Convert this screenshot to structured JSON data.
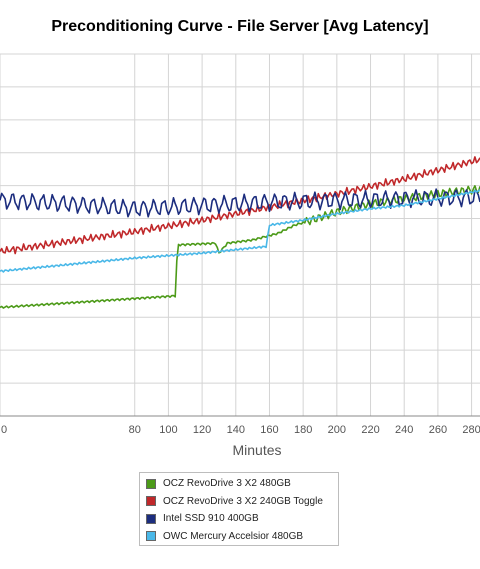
{
  "chart_data": {
    "type": "line",
    "title": "Preconditioning Curve - File Server [Avg Latency]",
    "xlabel": "Minutes",
    "ylabel": "",
    "xlim": [
      0,
      285
    ],
    "ylim": [
      0,
      11
    ],
    "grid": true,
    "legend_position": "bottom-center",
    "x_ticks": [
      "0",
      "80",
      "100",
      "120",
      "140",
      "160",
      "180",
      "200",
      "220",
      "240",
      "260",
      "280"
    ],
    "x_tick_values": [
      0,
      80,
      100,
      120,
      140,
      160,
      180,
      200,
      220,
      240,
      260,
      280
    ],
    "series": [
      {
        "name": "OCZ RevoDrive 3 X2 480GB",
        "color": "#4c9a18",
        "points": [
          [
            0,
            3.3
          ],
          [
            104,
            3.65
          ],
          [
            105,
            4.7
          ],
          [
            106,
            5.2
          ],
          [
            128,
            5.25
          ],
          [
            130,
            4.95
          ],
          [
            135,
            5.25
          ],
          [
            150,
            5.35
          ],
          [
            165,
            5.55
          ],
          [
            175,
            5.8
          ],
          [
            185,
            5.95
          ],
          [
            200,
            6.2
          ],
          [
            220,
            6.45
          ],
          [
            240,
            6.6
          ],
          [
            260,
            6.75
          ],
          [
            285,
            6.9
          ]
        ]
      },
      {
        "name": "OCZ RevoDrive 3 X2 240GB Toggle",
        "color": "#c0282a",
        "points": [
          [
            0,
            5.0
          ],
          [
            40,
            5.3
          ],
          [
            80,
            5.6
          ],
          [
            120,
            5.95
          ],
          [
            160,
            6.35
          ],
          [
            200,
            6.75
          ],
          [
            240,
            7.2
          ],
          [
            285,
            7.8
          ]
        ]
      },
      {
        "name": "Intel SSD 910 400GB",
        "color": "#1c2d7e",
        "points": [
          [
            0,
            6.55
          ],
          [
            40,
            6.45
          ],
          [
            80,
            6.3
          ],
          [
            120,
            6.4
          ],
          [
            160,
            6.5
          ],
          [
            200,
            6.55
          ],
          [
            240,
            6.6
          ],
          [
            285,
            6.65
          ]
        ]
      },
      {
        "name": "OWC Mercury Accelsior 480GB",
        "color": "#4ab8e8",
        "points": [
          [
            0,
            4.4
          ],
          [
            40,
            4.6
          ],
          [
            80,
            4.8
          ],
          [
            120,
            4.95
          ],
          [
            158,
            5.15
          ],
          [
            160,
            5.8
          ],
          [
            180,
            5.95
          ],
          [
            200,
            6.15
          ],
          [
            220,
            6.3
          ],
          [
            240,
            6.4
          ],
          [
            260,
            6.6
          ],
          [
            285,
            6.85
          ]
        ]
      }
    ]
  }
}
